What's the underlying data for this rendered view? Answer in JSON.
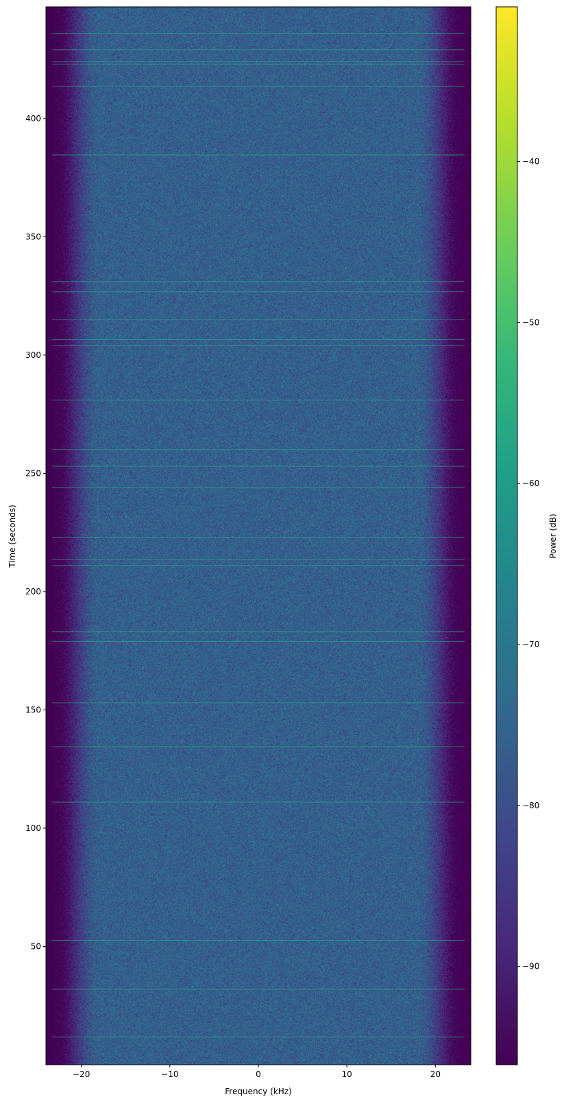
{
  "chart_data": {
    "type": "heatmap",
    "subtype": "spectrogram",
    "colormap": "viridis",
    "xlabel": "Frequency (kHz)",
    "ylabel": "Time (seconds)",
    "colorbar_label": "Power (dB)",
    "xlim": [
      -24,
      24
    ],
    "ylim": [
      0,
      447.2
    ],
    "clim": [
      -96.1,
      -30.4
    ],
    "xticks": [
      -20,
      -10,
      0,
      10,
      20
    ],
    "xtick_labels": [
      "−20",
      "−10",
      "0",
      "10",
      "20"
    ],
    "yticks": [
      50,
      100,
      150,
      200,
      250,
      300,
      350,
      400
    ],
    "ytick_labels": [
      "50",
      "100",
      "150",
      "200",
      "250",
      "300",
      "350",
      "400"
    ],
    "cticks": [
      -90,
      -80,
      -70,
      -60,
      -50,
      -40
    ],
    "ctick_labels": [
      "−90",
      "−80",
      "−70",
      "−60",
      "−50",
      "−40"
    ],
    "passband_khz": [
      -18,
      18
    ],
    "passband_power_db": -76,
    "stopband_power_db": -96,
    "event_times_s": [
      436,
      429,
      424,
      423,
      413.6,
      384.6,
      331,
      326.7,
      315,
      306.5,
      304,
      281,
      260,
      253,
      244,
      223,
      213.6,
      211,
      183,
      179,
      153,
      134.4,
      111,
      52.6,
      31.9,
      11.7
    ],
    "grid": false
  }
}
